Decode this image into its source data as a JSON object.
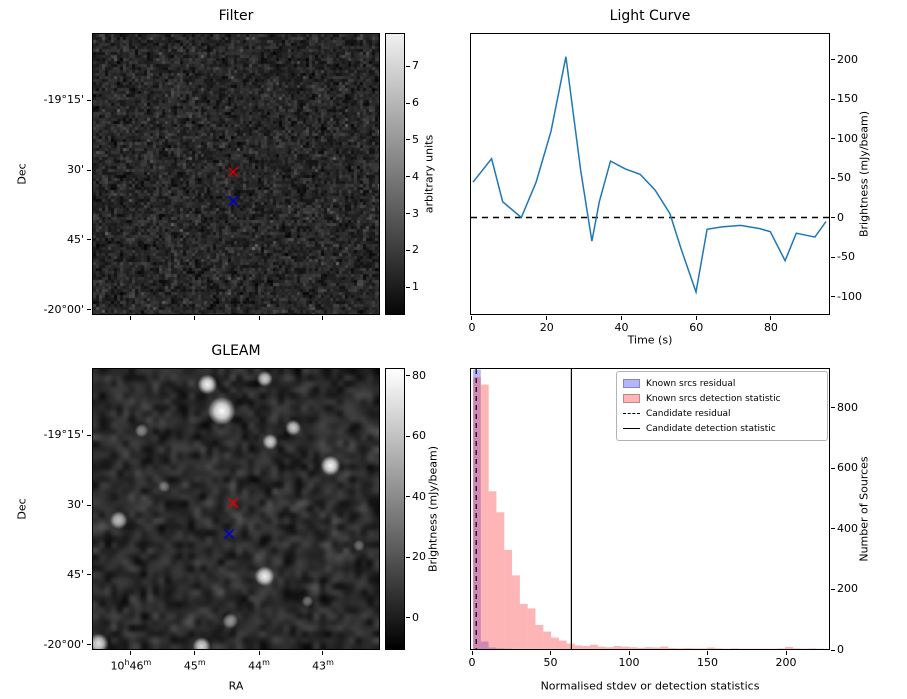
{
  "figure": {
    "background": "#ffffff"
  },
  "chart_data": [
    {
      "id": "filter",
      "type": "heatmap",
      "title": "Filter",
      "ylabel": "Dec",
      "colormap": "gray",
      "yticks": {
        "labels": [
          "-19°15'",
          "30'",
          "45'",
          "-20°00'"
        ],
        "fracs": [
          0.238,
          0.486,
          0.734,
          0.982
        ]
      },
      "xticks": {
        "fracs": [
          0.135,
          0.357,
          0.58,
          0.802
        ]
      },
      "colorbar": {
        "label": "arbitrary units",
        "ticks": [
          1,
          2,
          3,
          4,
          5,
          6,
          7
        ],
        "vmin": 0.25,
        "vmax": 7.9
      },
      "markers": [
        {
          "shape": "x",
          "color": "#e00000",
          "fx": 0.49,
          "fy": 0.493,
          "name": "candidate-position-marker"
        },
        {
          "shape": "x",
          "color": "#0000cd",
          "fx": 0.49,
          "fy": 0.596,
          "name": "known-source-marker"
        }
      ]
    },
    {
      "id": "light-curve",
      "type": "line",
      "title": "Light Curve",
      "xlabel": "Time (s)",
      "ylabel": "Brightness (mJy/beam)",
      "x_range": [
        -0.53,
        95.8
      ],
      "y_range": [
        -123,
        234
      ],
      "xticks": [
        0,
        20,
        40,
        60,
        80
      ],
      "yticks": [
        -100,
        -50,
        0,
        50,
        100,
        150,
        200
      ],
      "line_color": "#1f77b4",
      "zero_line_y": 0,
      "x": [
        0,
        5,
        8,
        13,
        17,
        21,
        25,
        29,
        32,
        34,
        37,
        41,
        45,
        49,
        53,
        56,
        60,
        63,
        67,
        72,
        77,
        80,
        84,
        87,
        92,
        95
      ],
      "y": [
        45,
        75,
        20,
        0,
        45,
        110,
        205,
        60,
        -30,
        20,
        72,
        62,
        55,
        35,
        5,
        -40,
        -95,
        -15,
        -12,
        -10,
        -14,
        -18,
        -55,
        -20,
        -25,
        -5
      ]
    },
    {
      "id": "gleam",
      "type": "heatmap",
      "title": "GLEAM",
      "xlabel": "RA",
      "ylabel": "Dec",
      "colormap": "gray",
      "yticks": {
        "labels": [
          "-19°15'",
          "30'",
          "45'",
          "-20°00'"
        ],
        "fracs": [
          0.238,
          0.486,
          0.734,
          0.982
        ]
      },
      "xticks": {
        "labels": [
          "10h46m",
          "45m",
          "44m",
          "43m"
        ],
        "fracs": [
          0.135,
          0.357,
          0.58,
          0.802
        ]
      },
      "colorbar": {
        "label": "Brightness (mJy/beam)",
        "ticks": [
          0,
          20,
          40,
          60,
          80
        ],
        "vmin": -10.6,
        "vmax": 82.6
      },
      "markers": [
        {
          "shape": "x",
          "color": "#e00000",
          "fx": 0.49,
          "fy": 0.479,
          "name": "candidate-position-marker"
        },
        {
          "shape": "x",
          "color": "#0000cd",
          "fx": 0.476,
          "fy": 0.589,
          "name": "known-source-marker"
        }
      ],
      "sources": [
        {
          "fx": 0.4,
          "fy": 0.055,
          "r": 10,
          "a": 0.95
        },
        {
          "fx": 0.6,
          "fy": 0.035,
          "r": 8,
          "a": 0.8
        },
        {
          "fx": 0.45,
          "fy": 0.15,
          "r": 14,
          "a": 1.0
        },
        {
          "fx": 0.7,
          "fy": 0.21,
          "r": 8,
          "a": 0.75
        },
        {
          "fx": 0.62,
          "fy": 0.26,
          "r": 8,
          "a": 0.8
        },
        {
          "fx": 0.17,
          "fy": 0.22,
          "r": 7,
          "a": 0.5
        },
        {
          "fx": 0.83,
          "fy": 0.345,
          "r": 10,
          "a": 0.95
        },
        {
          "fx": 0.09,
          "fy": 0.54,
          "r": 9,
          "a": 0.7
        },
        {
          "fx": 0.6,
          "fy": 0.74,
          "r": 10,
          "a": 0.95
        },
        {
          "fx": 0.48,
          "fy": 0.9,
          "r": 8,
          "a": 0.55
        },
        {
          "fx": 0.38,
          "fy": 0.99,
          "r": 9,
          "a": 0.8
        },
        {
          "fx": 0.02,
          "fy": 0.98,
          "r": 10,
          "a": 0.85
        },
        {
          "fx": 0.93,
          "fy": 0.63,
          "r": 6,
          "a": 0.4
        },
        {
          "fx": 0.25,
          "fy": 0.42,
          "r": 6,
          "a": 0.35
        },
        {
          "fx": 0.75,
          "fy": 0.83,
          "r": 6,
          "a": 0.4
        }
      ]
    },
    {
      "id": "histogram",
      "type": "bar",
      "xlabel": "Normalised stdev or detection statistics",
      "ylabel": "Number of Sources",
      "x_range": [
        -1.3,
        228
      ],
      "y_range": [
        0,
        932
      ],
      "xticks": [
        0,
        50,
        100,
        150,
        200
      ],
      "yticks": [
        0,
        200,
        400,
        600,
        800
      ],
      "bin_width": 5,
      "bin_start": 0,
      "series": [
        {
          "name": "Known srcs residual",
          "color": "rgba(70,70,245,0.4)",
          "values": [
            930,
            25,
            5,
            2,
            1
          ]
        },
        {
          "name": "Known srcs detection statistic",
          "color": "rgba(250,70,70,0.4)",
          "values": [
            905,
            880,
            525,
            455,
            330,
            245,
            150,
            135,
            80,
            58,
            38,
            28,
            18,
            12,
            10,
            14,
            8,
            6,
            10,
            8,
            6,
            4,
            6,
            5,
            8,
            3,
            2,
            3,
            2,
            2,
            5,
            2,
            1,
            2,
            1,
            1,
            1,
            1,
            1,
            2,
            7,
            2,
            1,
            2,
            1,
            0
          ]
        }
      ],
      "vlines": [
        {
          "name": "Candidate residual",
          "x": 2,
          "style": "dashed"
        },
        {
          "name": "Candidate detection statistic",
          "x": 63,
          "style": "solid"
        }
      ],
      "legend": [
        "Known srcs residual",
        "Known srcs detection statistic",
        "Candidate residual",
        "Candidate detection statistic"
      ]
    }
  ]
}
